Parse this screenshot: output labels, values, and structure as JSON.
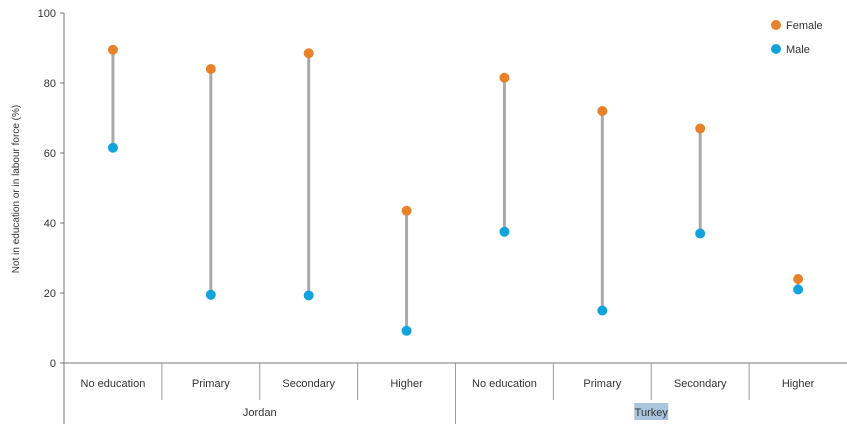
{
  "chart_data": {
    "type": "dumbbell",
    "ylabel": "Not in education or in labour force (%)",
    "ylim": [
      0,
      100
    ],
    "yticks": [
      0,
      20,
      40,
      60,
      80,
      100
    ],
    "groups": [
      "Jordan",
      "Turkey"
    ],
    "categories": [
      "No education",
      "Primary",
      "Secondary",
      "Higher",
      "No education",
      "Primary",
      "Secondary",
      "Higher"
    ],
    "group_of_category": [
      0,
      0,
      0,
      0,
      1,
      1,
      1,
      1
    ],
    "series": [
      {
        "name": "Female",
        "color": "#e8822a",
        "values": [
          89.5,
          84,
          88.5,
          43.5,
          81.5,
          72,
          67,
          24
        ]
      },
      {
        "name": "Male",
        "color": "#12a3dd",
        "values": [
          61.5,
          19.5,
          19.3,
          9.2,
          37.5,
          15,
          37,
          21
        ]
      }
    ],
    "legend_position": "top-right",
    "highlight_color": "#a9c6de"
  }
}
